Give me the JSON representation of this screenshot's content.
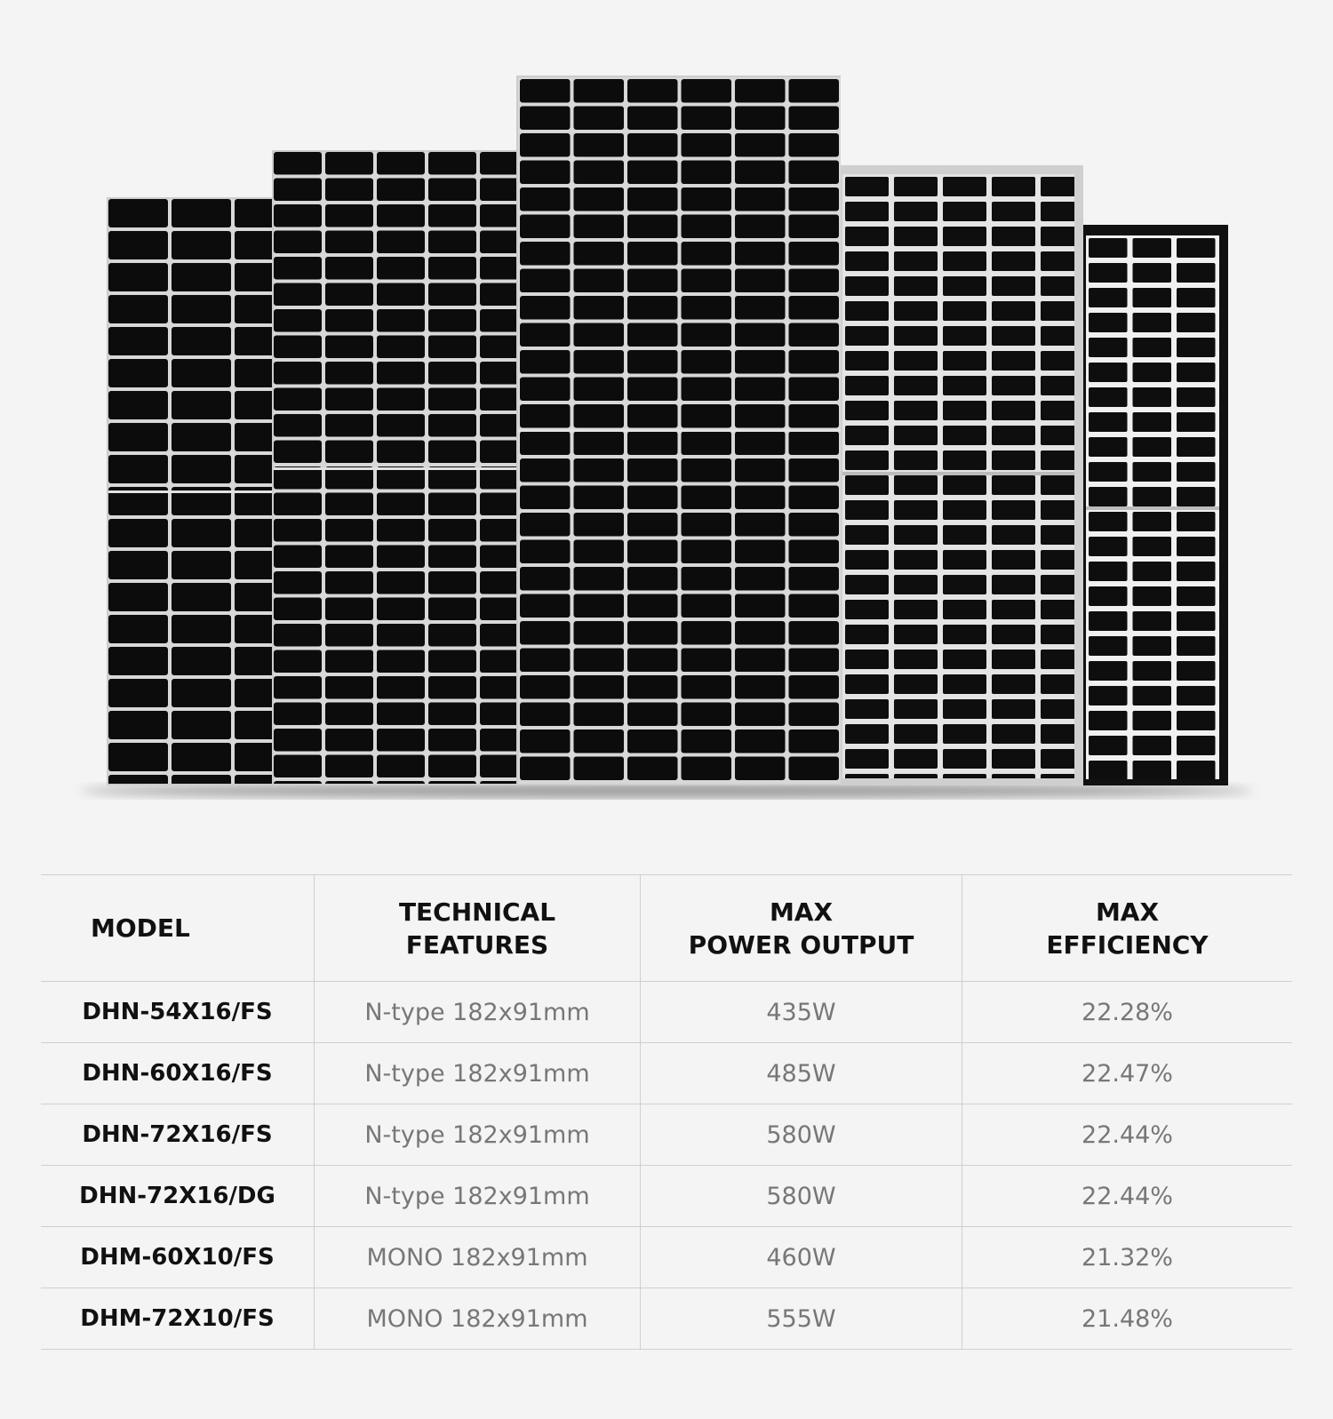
{
  "table": {
    "headers": [
      [
        "MODEL"
      ],
      [
        "TECHNICAL",
        "FEATURES"
      ],
      [
        "MAX",
        "POWER OUTPUT"
      ],
      [
        "MAX",
        "EFFICIENCY"
      ]
    ],
    "rows": [
      [
        "DHN-54X16/FS",
        "N-type 182x91mm",
        "435W",
        "22.28%"
      ],
      [
        "DHN-60X16/FS",
        "N-type 182x91mm",
        "485W",
        "22.47%"
      ],
      [
        "DHN-72X16/FS",
        "N-type 182x91mm",
        "580W",
        "22.44%"
      ],
      [
        "DHN-72X16/DG",
        "N-type 182x91mm",
        "580W",
        "22.44%"
      ],
      [
        "DHM-60X10/FS",
        "MONO 182x91mm",
        "460W",
        "21.32%"
      ],
      [
        "DHM-72X10/FS",
        "MONO 182x91mm",
        "555W",
        "21.48%"
      ]
    ]
  }
}
